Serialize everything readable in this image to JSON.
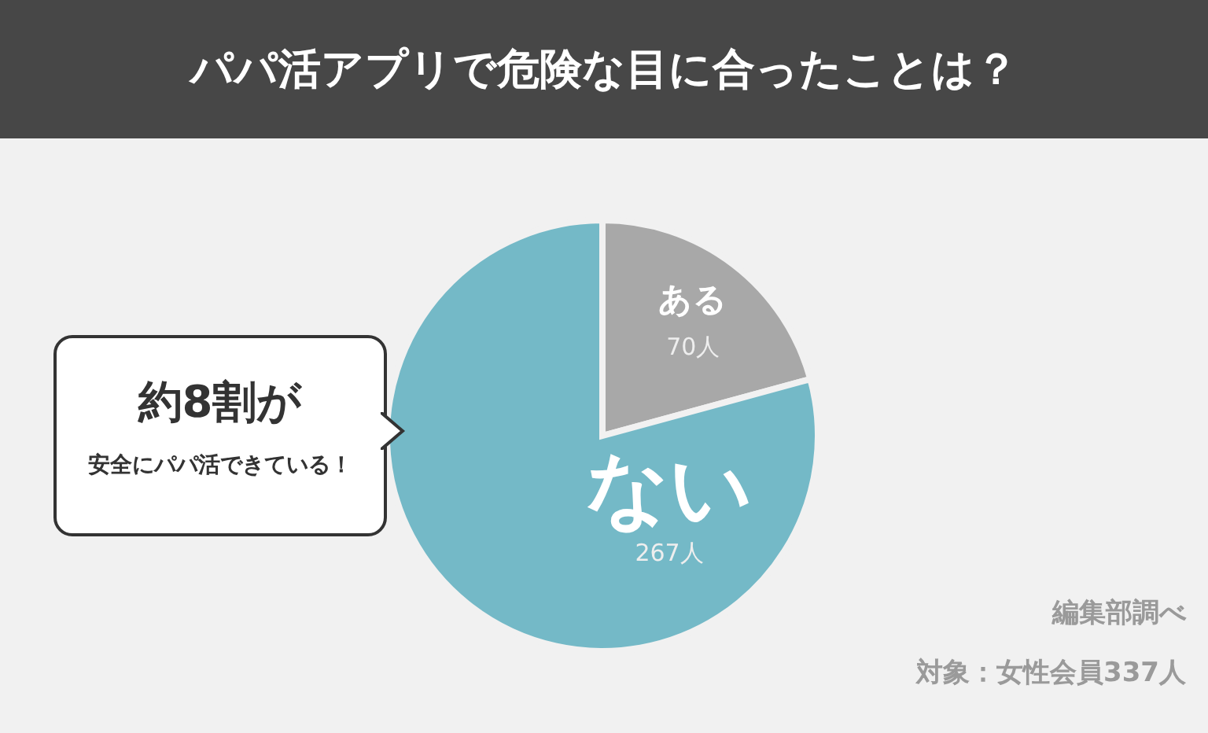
{
  "chart_data": {
    "type": "pie",
    "title": "パパ活アプリで危険な目に合ったことは？",
    "categories": [
      "ある",
      "ない"
    ],
    "values": [
      70,
      267
    ],
    "value_labels": [
      "70人",
      "267人"
    ],
    "colors": [
      "#a8a8a8",
      "#74b9c7"
    ],
    "annotations": [
      "約8割が",
      "安全にパパ活できている！",
      "編集部調べ",
      "対象：女性会員337人"
    ]
  }
}
